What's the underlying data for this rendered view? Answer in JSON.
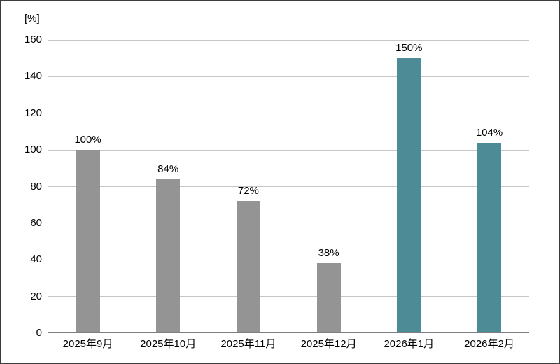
{
  "chart_data": {
    "type": "bar",
    "title": "",
    "xlabel": "",
    "ylabel": "[%]",
    "unit_label": "[%]",
    "categories": [
      "2025年9月",
      "2025年10月",
      "2025年11月",
      "2025年12月",
      "2026年1月",
      "2026年2月"
    ],
    "values": [
      100,
      84,
      72,
      38,
      150,
      104
    ],
    "data_labels": [
      "100%",
      "84%",
      "72%",
      "38%",
      "150%",
      "104%"
    ],
    "bar_colors": [
      "#949494",
      "#949494",
      "#949494",
      "#949494",
      "#4d8b96",
      "#4d8b96"
    ],
    "y_ticks": [
      0,
      20,
      40,
      60,
      80,
      100,
      120,
      140,
      160
    ],
    "ylim": [
      0,
      160
    ],
    "grid": "horizontal",
    "legend": "none",
    "colors": {
      "bar_gray": "#949494",
      "bar_teal": "#4d8b96",
      "gridline": "#c6c6c6",
      "axis_line": "#7f7f7f",
      "text": "#000000",
      "frame_border": "#3c3c3c",
      "background": "#ffffff"
    }
  }
}
